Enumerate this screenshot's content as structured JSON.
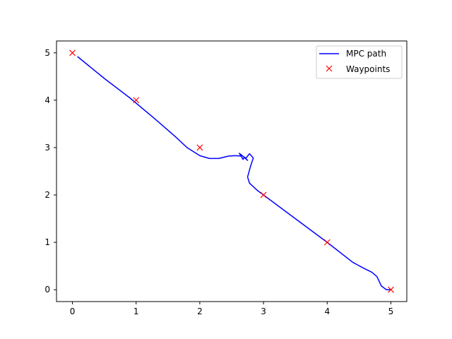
{
  "chart_data": {
    "type": "line",
    "title": "",
    "xlabel": "",
    "ylabel": "",
    "xlim": [
      -0.25,
      5.25
    ],
    "ylim": [
      -0.25,
      5.25
    ],
    "xticks": [
      "0",
      "1",
      "2",
      "3",
      "4",
      "5"
    ],
    "yticks": [
      "0",
      "1",
      "2",
      "3",
      "4",
      "5"
    ],
    "grid": false,
    "legend_position": "top-right",
    "series": [
      {
        "name": "MPC path",
        "kind": "line",
        "color": "#0000ff",
        "x": [
          0.08,
          0.5,
          0.9,
          1.3,
          1.6,
          1.8,
          2.0,
          2.15,
          2.3,
          2.45,
          2.55,
          2.65,
          2.62,
          2.68,
          2.7,
          2.75,
          2.64,
          2.72,
          2.78,
          2.84,
          2.8,
          2.75,
          2.78,
          2.9,
          3.0,
          3.5,
          4.0,
          4.4,
          4.55,
          4.7,
          4.78,
          4.85,
          4.93,
          5.0
        ],
        "y": [
          4.92,
          4.46,
          4.05,
          3.6,
          3.25,
          3.0,
          2.83,
          2.77,
          2.77,
          2.82,
          2.83,
          2.82,
          2.88,
          2.75,
          2.8,
          2.73,
          2.86,
          2.77,
          2.87,
          2.78,
          2.62,
          2.38,
          2.25,
          2.1,
          2.0,
          1.5,
          1.0,
          0.58,
          0.47,
          0.37,
          0.28,
          0.08,
          0.0,
          0.0
        ]
      },
      {
        "name": "Waypoints",
        "kind": "marker",
        "marker": "x",
        "color": "#ff0000",
        "x": [
          0,
          1,
          2,
          3,
          4,
          5
        ],
        "y": [
          5,
          4,
          3,
          2,
          1,
          0
        ]
      }
    ]
  }
}
